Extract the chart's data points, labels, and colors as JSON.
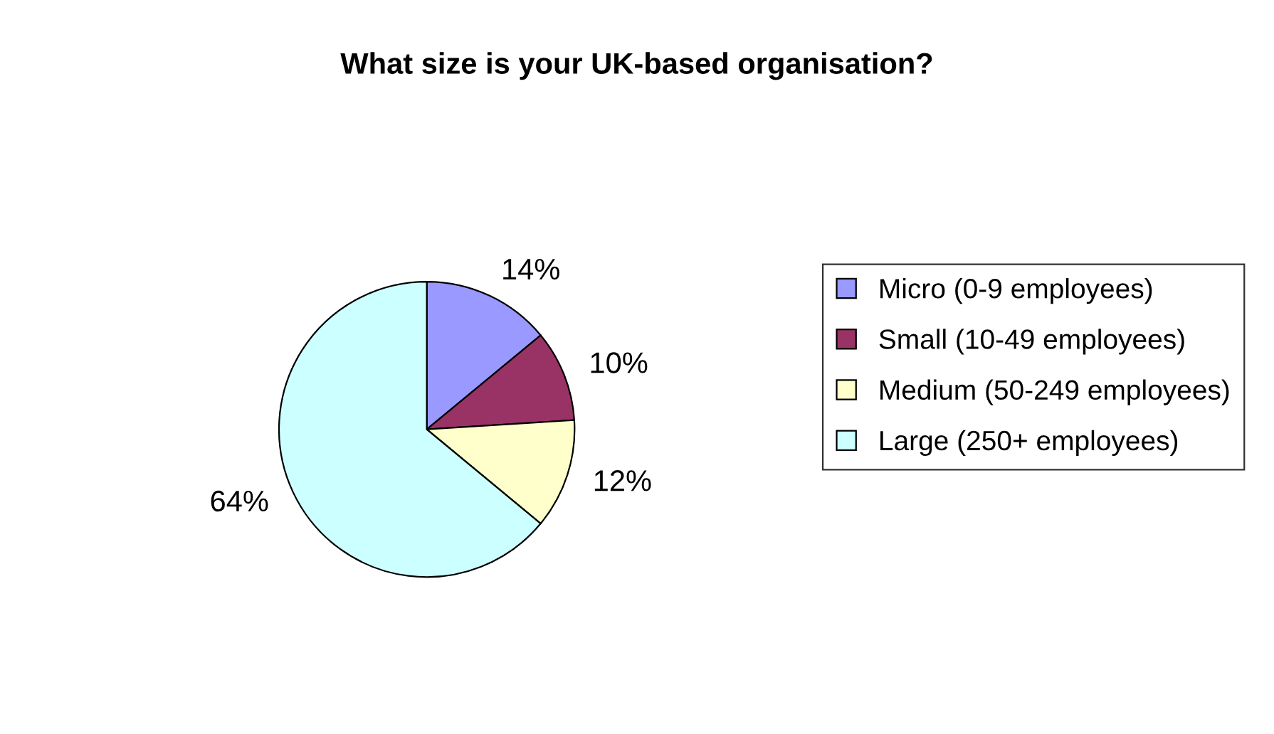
{
  "chart_data": {
    "type": "pie",
    "title": "What size is your UK-based organisation?",
    "categories": [
      "Micro (0-9 employees)",
      "Small (10-49 employees)",
      "Medium (50-249 employees)",
      "Large (250+ employees)"
    ],
    "values": [
      14,
      10,
      12,
      64
    ],
    "value_labels": [
      "14%",
      "10%",
      "12%",
      "64%"
    ],
    "colors": [
      "#9999ff",
      "#993366",
      "#ffffcc",
      "#ccffff"
    ],
    "legend": "right"
  }
}
